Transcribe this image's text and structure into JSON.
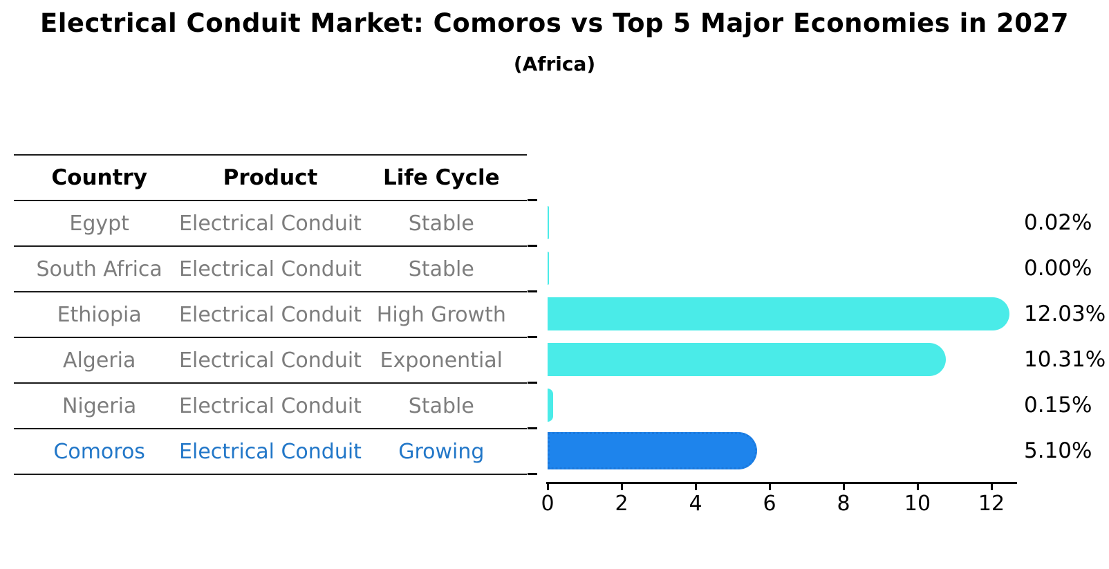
{
  "title": "Electrical Conduit Market: Comoros vs Top 5 Major Economies in 2027",
  "subtitle": "(Africa)",
  "table": {
    "headers": [
      "Country",
      "Product",
      "Life Cycle"
    ],
    "rows": [
      {
        "country": "Egypt",
        "product": "Electrical Conduit",
        "life_cycle": "Stable"
      },
      {
        "country": "South Africa",
        "product": "Electrical Conduit",
        "life_cycle": "Stable"
      },
      {
        "country": "Ethiopia",
        "product": "Electrical Conduit",
        "life_cycle": "High Growth"
      },
      {
        "country": "Algeria",
        "product": "Electrical Conduit",
        "life_cycle": "Exponential"
      },
      {
        "country": "Nigeria",
        "product": "Electrical Conduit",
        "life_cycle": "Stable"
      },
      {
        "country": "Comoros",
        "product": "Electrical Conduit",
        "life_cycle": "Growing"
      }
    ],
    "highlight_row": 5
  },
  "chart_data": {
    "type": "bar",
    "orientation": "horizontal",
    "title": "Electrical Conduit Market: Comoros vs Top 5 Major Economies in 2027 (Africa)",
    "categories": [
      "Egypt",
      "South Africa",
      "Ethiopia",
      "Algeria",
      "Nigeria",
      "Comoros"
    ],
    "values": [
      0.02,
      0.0,
      12.03,
      10.31,
      0.15,
      5.1
    ],
    "value_labels": [
      "0.02%",
      "0.00%",
      "12.03%",
      "10.31%",
      "0.15%",
      "5.10%"
    ],
    "xtick_labels": [
      "0",
      "2",
      "4",
      "6",
      "8",
      "10",
      "12"
    ],
    "xtick_values": [
      0,
      2,
      4,
      6,
      8,
      10,
      12
    ],
    "xlim": [
      0,
      12.7
    ],
    "grid": false,
    "legend": false,
    "highlight_index": 5,
    "colors": {
      "bar": "#4AEBE8",
      "highlight_bar": "#1E84EC",
      "highlight_border": "#1A78DC",
      "highlight_text": "#2277C8",
      "table_text": "#7D7D7D",
      "axis": "#000000"
    }
  }
}
